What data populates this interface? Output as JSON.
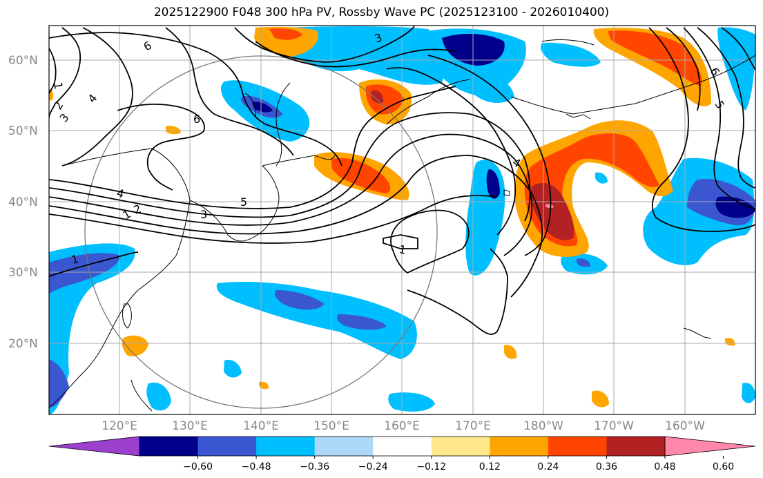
{
  "title": "2025122900 F048 300 hPa PV, Rossby Wave PC (2025123100 - 2026010400)",
  "lat_labels": [
    "60°N",
    "50°N",
    "40°N",
    "30°N",
    "20°N"
  ],
  "lon_labels": [
    "120°E",
    "130°E",
    "140°E",
    "150°E",
    "160°E",
    "170°E",
    "180°W",
    "170°W",
    "160°W"
  ],
  "colorbar": {
    "ticks": [
      "−0.60",
      "−0.48",
      "−0.36",
      "−0.24",
      "−0.12",
      "0.12",
      "0.24",
      "0.36",
      "0.48",
      "0.60"
    ],
    "colors": [
      "#9b3fcf",
      "#00008b",
      "#3a56d0",
      "#00bfff",
      "#add8f8",
      "#ffffff",
      "#ffe88a",
      "#ffa500",
      "#ff4500",
      "#b22222",
      "#ff88aa"
    ]
  },
  "contour_labels": [
    "6",
    "4",
    "2",
    "3",
    "1",
    "6",
    "4",
    "2",
    "1",
    "3",
    "5",
    "3",
    "1",
    "4",
    "5",
    "6",
    "1"
  ],
  "colors": {
    "grid": "#aaaaaa",
    "contour": "#000000",
    "coast": "#000000"
  }
}
